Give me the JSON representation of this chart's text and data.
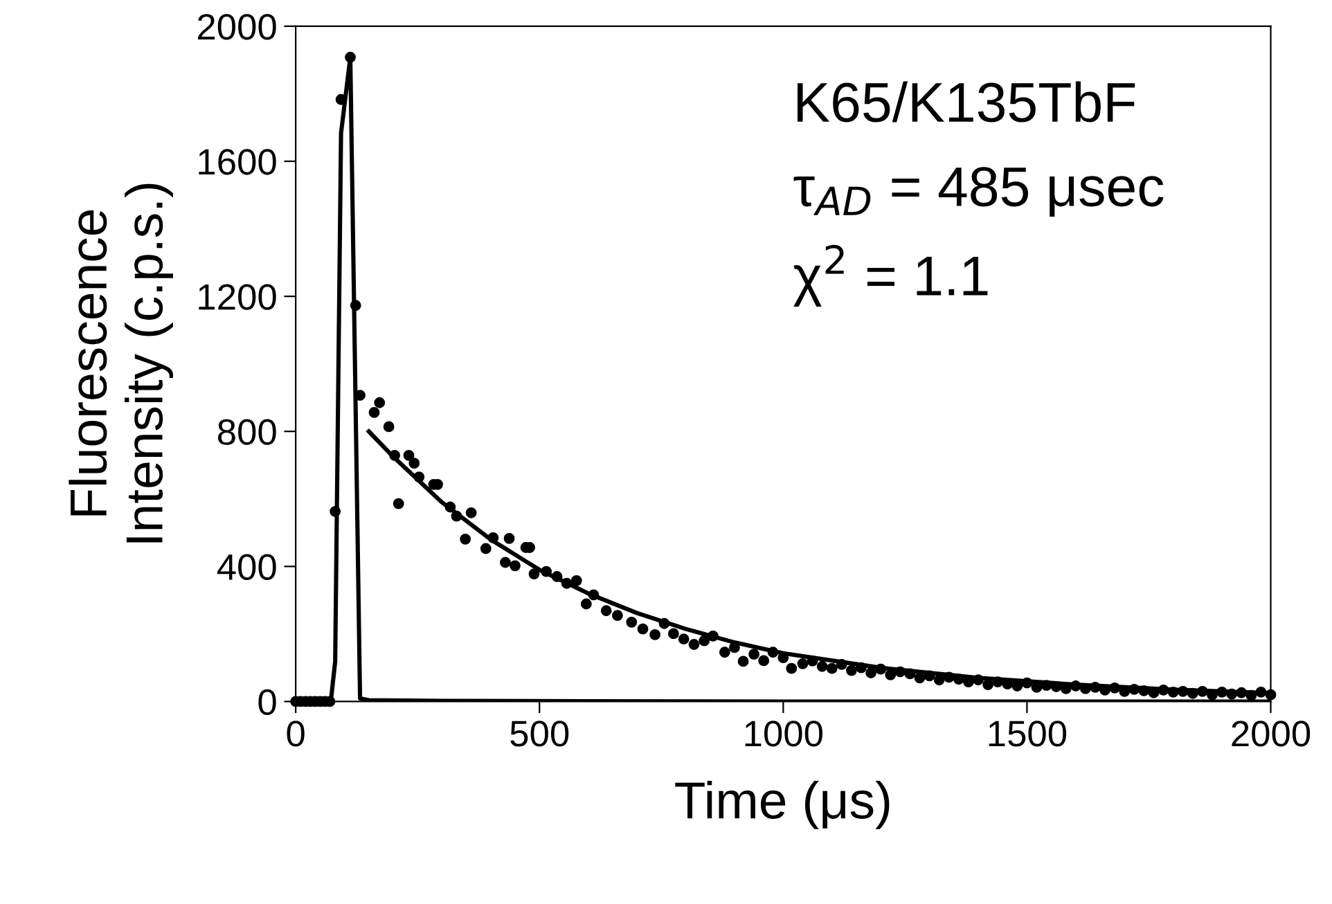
{
  "chart_data": {
    "type": "scatter",
    "xlabel": "Time (μs)",
    "ylabel": "Fluorescence\nIntensity (c.p.s.)",
    "xlim": [
      0,
      2000
    ],
    "xticks": [
      0,
      500,
      1000,
      1500,
      2000
    ],
    "ylim": [
      0,
      2000
    ],
    "yticks": [
      0,
      400,
      800,
      1200,
      1600,
      2000
    ],
    "grid": false,
    "legend": false,
    "annotations": [
      "K65/K135TbF",
      "τ$_{AD}$ = 485 μsec",
      "χ$^{2}$ = 1.1"
    ],
    "series": [
      {
        "color": "#000000",
        "marker": "circle",
        "x": [
          0,
          10,
          20,
          30,
          40,
          50,
          60,
          70,
          81,
          93,
          112,
          123,
          132,
          161,
          172,
          191,
          203,
          211,
          232,
          243,
          253,
          283,
          291,
          317,
          330,
          348,
          360,
          390,
          405,
          430,
          438,
          450,
          472,
          480,
          489,
          514,
          536,
          556,
          576,
          596,
          611,
          637,
          660,
          689,
          712,
          737,
          756,
          775,
          796,
          817,
          838,
          856,
          880,
          900,
          918,
          940,
          960,
          979,
          1000,
          1017,
          1040,
          1060,
          1080,
          1100,
          1120,
          1140,
          1160,
          1180,
          1200,
          1220,
          1240,
          1260,
          1280,
          1300,
          1320,
          1340,
          1360,
          1380,
          1400,
          1420,
          1440,
          1460,
          1480,
          1500,
          1520,
          1540,
          1560,
          1580,
          1600,
          1620,
          1640,
          1660,
          1680,
          1700,
          1720,
          1740,
          1760,
          1780,
          1800,
          1820,
          1840,
          1860,
          1880,
          1900,
          1920,
          1940,
          1960,
          1980,
          2000
        ],
        "values": [
          0,
          0,
          0,
          0,
          0,
          0,
          0,
          0,
          563,
          1783,
          1908,
          1173,
          907,
          856,
          885,
          814,
          729,
          586,
          729,
          706,
          665,
          643,
          643,
          576,
          549,
          481,
          559,
          453,
          485,
          412,
          483,
          402,
          456,
          456,
          378,
          385,
          370,
          350,
          358,
          289,
          316,
          269,
          255,
          235,
          215,
          198,
          231,
          201,
          185,
          169,
          180,
          194,
          146,
          160,
          119,
          140,
          121,
          146,
          130,
          98,
          112,
          120,
          104,
          98,
          110,
          92,
          100,
          85,
          96,
          79,
          88,
          82,
          70,
          76,
          64,
          72,
          66,
          58,
          64,
          50,
          58,
          52,
          46,
          55,
          42,
          48,
          44,
          38,
          46,
          38,
          42,
          34,
          40,
          30,
          36,
          32,
          26,
          34,
          28,
          30,
          24,
          30,
          20,
          28,
          22,
          26,
          18,
          28,
          20
        ]
      },
      {
        "type": "line",
        "color": "#000000",
        "marker": "none",
        "line_style": "solid",
        "x": [
          0,
          72,
          81,
          93,
          112,
          132,
          150,
          300,
          600,
          1000,
          1500,
          2000
        ],
        "values": [
          0,
          0,
          119,
          1683,
          1908,
          9,
          4,
          2,
          1,
          0,
          0,
          0
        ]
      },
      {
        "type": "line",
        "color": "#000000",
        "marker": "none",
        "line_style": "solid",
        "x": [
          150,
          200,
          300,
          400,
          500,
          600,
          700,
          800,
          900,
          1000,
          1200,
          1400,
          1600,
          1800,
          2000
        ],
        "values": [
          800,
          725,
          590,
          480,
          390,
          320,
          262,
          215,
          175,
          143,
          100,
          70,
          50,
          35,
          25
        ]
      }
    ]
  }
}
